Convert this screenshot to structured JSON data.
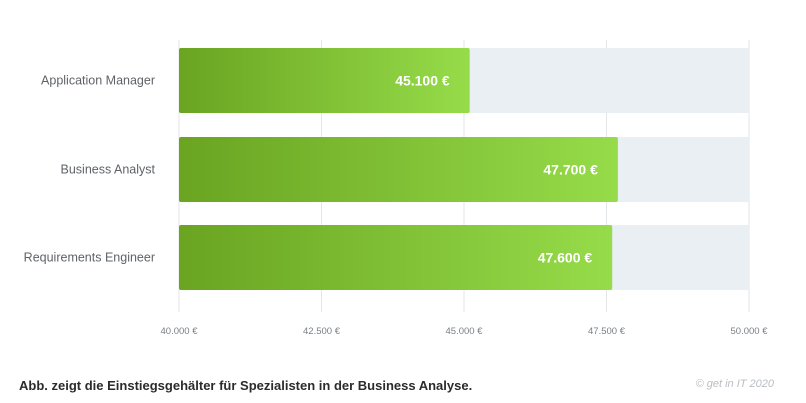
{
  "chart_data": {
    "type": "bar",
    "orientation": "horizontal",
    "categories": [
      "Application Manager",
      "Business Analyst",
      "Requirements Engineer"
    ],
    "values": [
      45100,
      47700,
      47600
    ],
    "value_labels": [
      "45.100 €",
      "47.700 €",
      "47.600 €"
    ],
    "xlim": [
      40000,
      50000
    ],
    "xticks": [
      40000,
      42500,
      45000,
      47500,
      50000
    ],
    "xtick_labels": [
      "40.000 €",
      "42.500 €",
      "45.000 €",
      "47.500 €",
      "50.000 €"
    ],
    "grid": true,
    "colors": {
      "bar_start": "#6aa421",
      "bar_end": "#96dc4a",
      "track": "#e9eff3",
      "grid": "#e3e6e9"
    }
  },
  "caption": "Abb. zeigt die Einstiegsgehälter für Spezialisten in der Business Analyse.",
  "copyright": "© get in IT 2020"
}
